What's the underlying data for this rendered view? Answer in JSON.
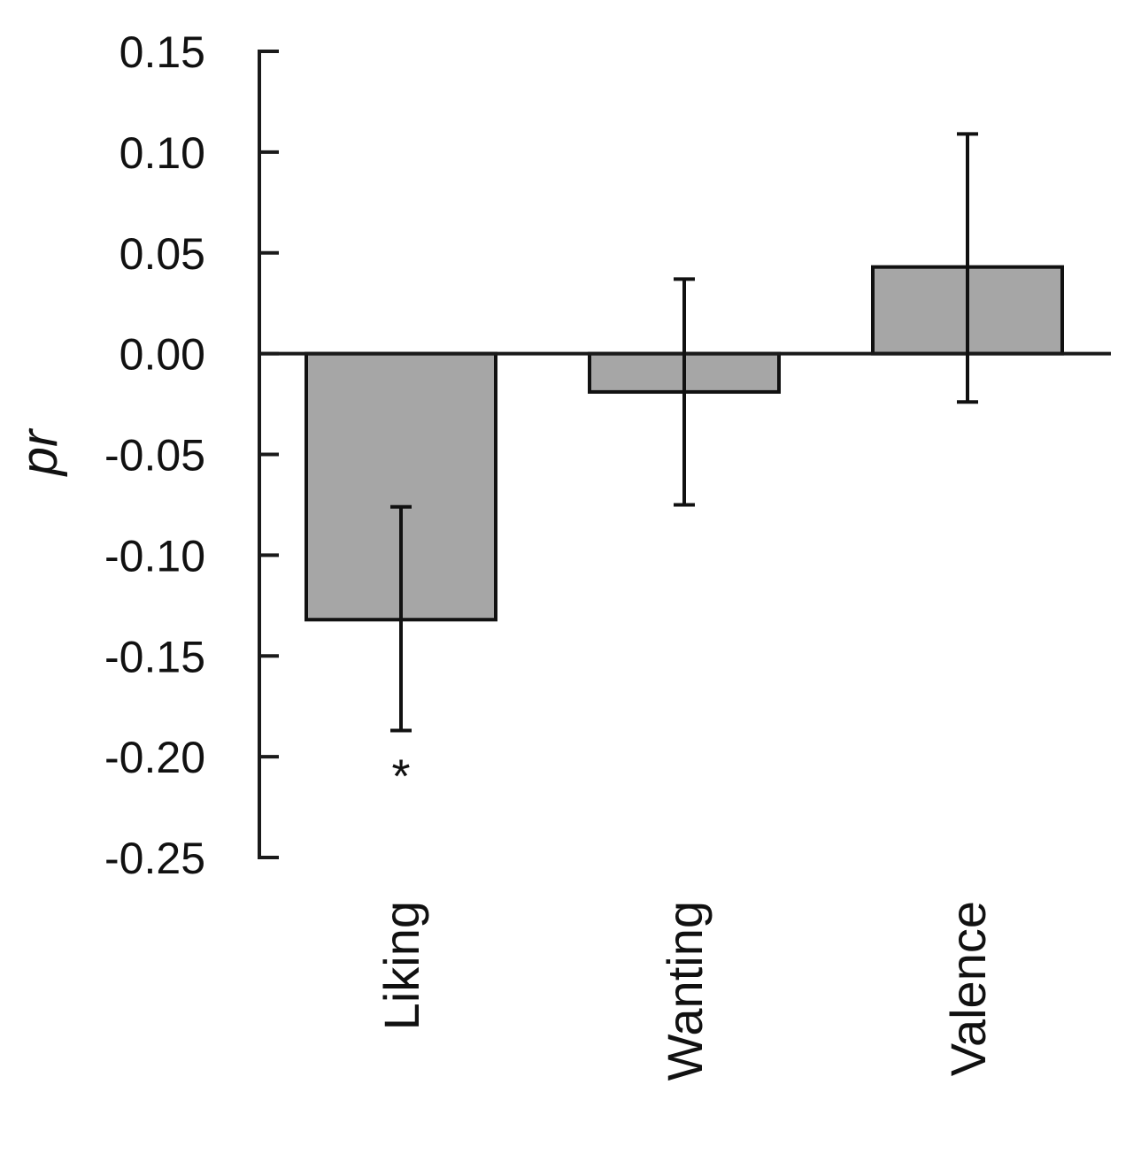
{
  "chart_data": {
    "type": "bar",
    "title": "",
    "xlabel": "",
    "ylabel": "pr",
    "categories": [
      "Liking",
      "Wanting",
      "Valence"
    ],
    "values": [
      -0.132,
      -0.019,
      0.043
    ],
    "error_low": [
      -0.187,
      -0.075,
      -0.024
    ],
    "error_high": [
      -0.076,
      0.037,
      0.109
    ],
    "ylim": [
      -0.25,
      0.15
    ],
    "yticks": [
      "0.15",
      "0.10",
      "0.05",
      "0.00",
      "-0.05",
      "-0.10",
      "-0.15",
      "-0.20",
      "-0.25"
    ],
    "annotations": [
      {
        "category": "Liking",
        "text": "*"
      }
    ],
    "grid": false,
    "bar_color": "#a6a6a6"
  }
}
